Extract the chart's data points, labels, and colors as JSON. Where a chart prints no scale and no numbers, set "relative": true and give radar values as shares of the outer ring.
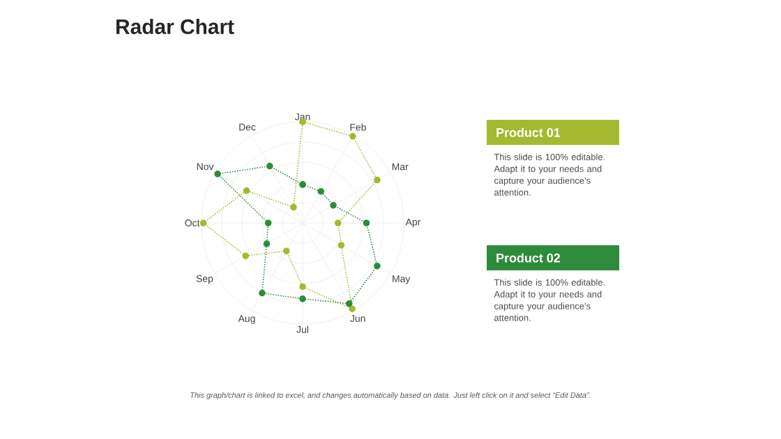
{
  "chart_data": {
    "type": "radar",
    "title": "Radar Chart",
    "relative": true,
    "grid": true,
    "marker": "circle",
    "line_style": "dotted",
    "categories": [
      "Jan",
      "Feb",
      "Mar",
      "Apr",
      "May",
      "Jun",
      "Jul",
      "Aug",
      "Sep",
      "Oct",
      "Nov",
      "Dec"
    ],
    "series": [
      {
        "name": "Product 01",
        "color": "#a4b92f",
        "values": [
          1.0,
          0.99,
          0.85,
          0.35,
          0.44,
          0.98,
          0.63,
          0.32,
          0.65,
          0.98,
          0.64,
          0.18
        ]
      },
      {
        "name": "Product 02",
        "color": "#2e8b3c",
        "values": [
          0.38,
          0.36,
          0.35,
          0.63,
          0.85,
          0.92,
          0.75,
          0.8,
          0.41,
          0.34,
          0.97,
          0.65
        ]
      }
    ],
    "annotations": [
      "This slide is 100% editable. Adapt it to your needs and capture your audience’s attention.",
      "This slide is 100% editable. Adapt it to your needs and capture your audience’s attention.",
      "This graph/chart is linked to excel, and changes automatically based on data. Just left click on it and select “Edit Data”."
    ]
  }
}
